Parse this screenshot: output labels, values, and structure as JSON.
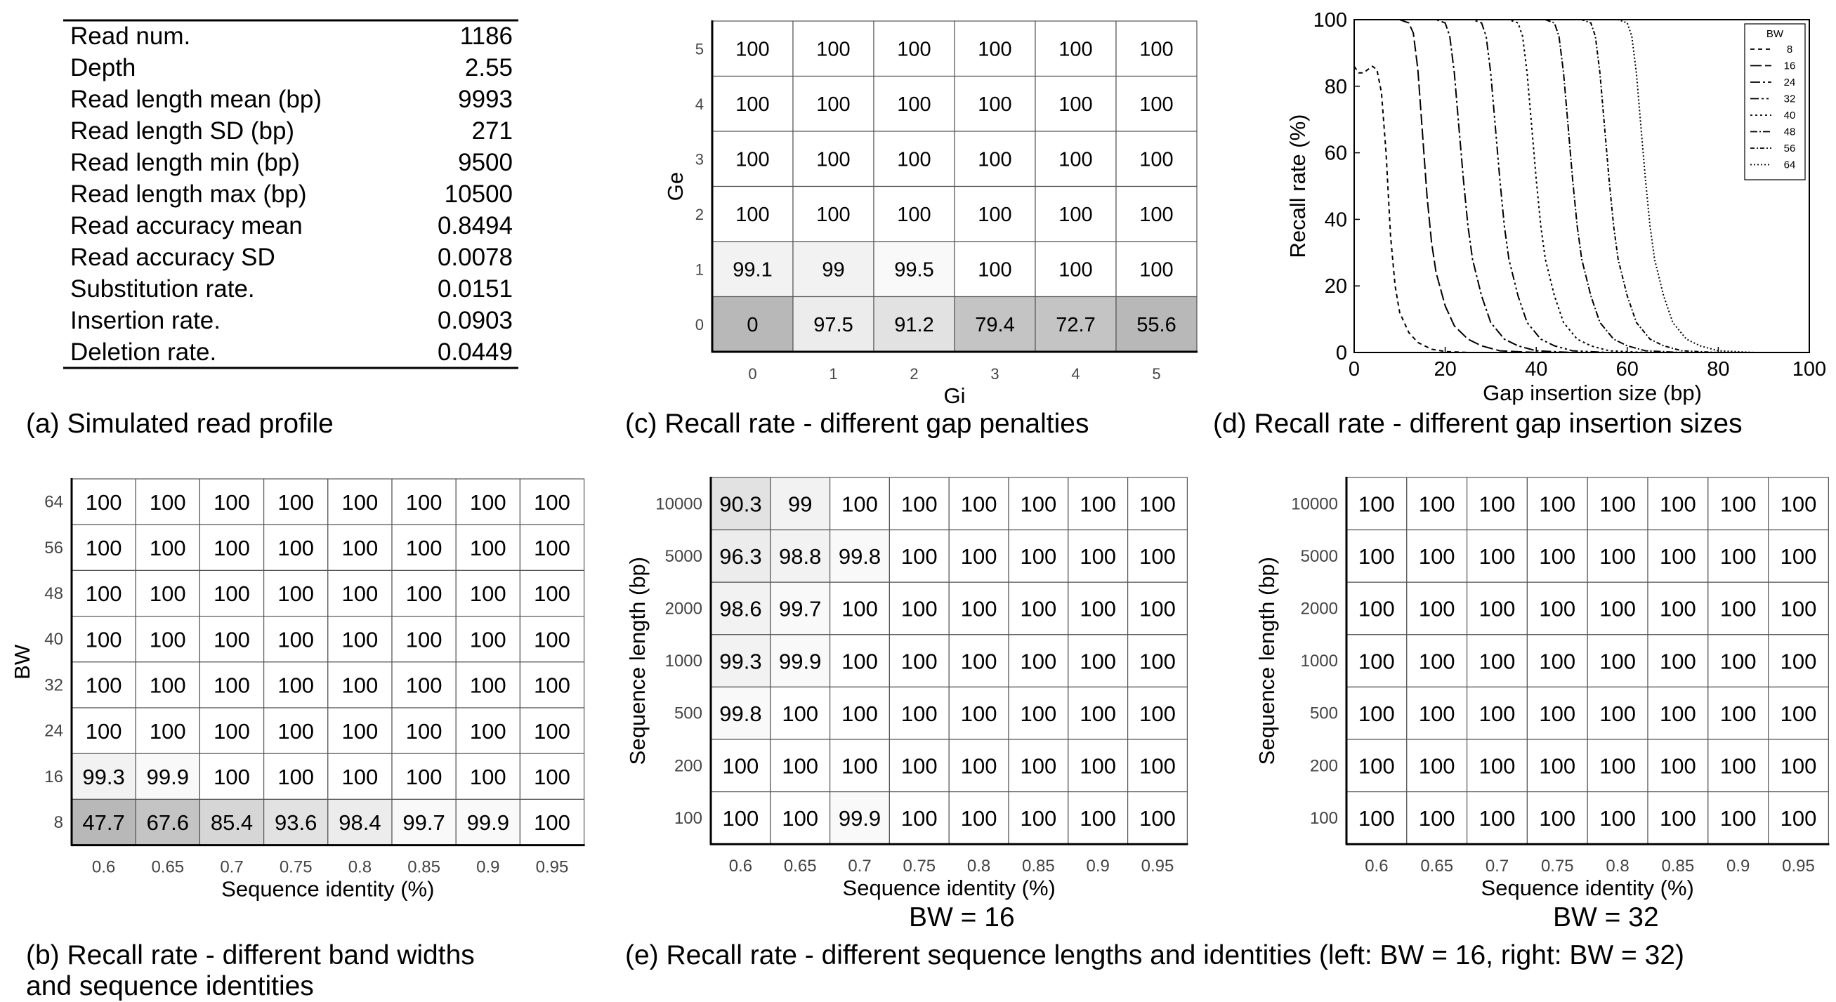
{
  "panel_a": {
    "caption": "(a) Simulated read profile",
    "rows": [
      [
        "Read num.",
        "1186"
      ],
      [
        "Depth",
        "2.55"
      ],
      [
        "Read length mean (bp)",
        "9993"
      ],
      [
        "Read length SD (bp)",
        "271"
      ],
      [
        "Read length min (bp)",
        "9500"
      ],
      [
        "Read length max (bp)",
        "10500"
      ],
      [
        "Read accuracy mean",
        "0.8494"
      ],
      [
        "Read accuracy SD",
        "0.0078"
      ],
      [
        "Substitution rate.",
        "0.0151"
      ],
      [
        "Insertion rate.",
        "0.0903"
      ],
      [
        "Deletion rate.",
        "0.0449"
      ]
    ]
  },
  "panel_b": {
    "caption_line1": "(b) Recall rate - different band widths",
    "caption_line2": "and sequence identities"
  },
  "panel_c": {
    "caption": "(c) Recall rate - different gap penalties"
  },
  "panel_d": {
    "caption": "(d) Recall rate - different gap insertion sizes"
  },
  "panel_e": {
    "caption": "(e) Recall rate - different sequence lengths and identities (left: BW = 16, right: BW = 32)",
    "left_label": "BW = 16",
    "right_label": "BW = 32"
  },
  "chart_data": [
    {
      "id": "b",
      "type": "heatmap",
      "xlabel": "Sequence identity (%)",
      "ylabel": "BW",
      "x": [
        "0.6",
        "0.65",
        "0.7",
        "0.75",
        "0.8",
        "0.85",
        "0.9",
        "0.95"
      ],
      "y": [
        "64",
        "56",
        "48",
        "40",
        "32",
        "24",
        "16",
        "8"
      ],
      "values": [
        [
          100,
          100,
          100,
          100,
          100,
          100,
          100,
          100
        ],
        [
          100,
          100,
          100,
          100,
          100,
          100,
          100,
          100
        ],
        [
          100,
          100,
          100,
          100,
          100,
          100,
          100,
          100
        ],
        [
          100,
          100,
          100,
          100,
          100,
          100,
          100,
          100
        ],
        [
          100,
          100,
          100,
          100,
          100,
          100,
          100,
          100
        ],
        [
          100,
          100,
          100,
          100,
          100,
          100,
          100,
          100
        ],
        [
          99.3,
          99.9,
          100,
          100,
          100,
          100,
          100,
          100
        ],
        [
          47.7,
          67.6,
          85.4,
          93.6,
          98.4,
          99.7,
          99.9,
          100
        ]
      ]
    },
    {
      "id": "c",
      "type": "heatmap",
      "xlabel": "Gi",
      "ylabel": "Ge",
      "x": [
        "0",
        "1",
        "2",
        "3",
        "4",
        "5"
      ],
      "y": [
        "5",
        "4",
        "3",
        "2",
        "1",
        "0"
      ],
      "values": [
        [
          100,
          100,
          100,
          100,
          100,
          100
        ],
        [
          100,
          100,
          100,
          100,
          100,
          100
        ],
        [
          100,
          100,
          100,
          100,
          100,
          100
        ],
        [
          100,
          100,
          100,
          100,
          100,
          100
        ],
        [
          99.1,
          99,
          99.5,
          100,
          100,
          100
        ],
        [
          0,
          97.5,
          91.2,
          79.4,
          72.7,
          55.6
        ]
      ]
    },
    {
      "id": "d",
      "type": "line",
      "xlabel": "Gap insertion size (bp)",
      "ylabel": "Recall rate (%)",
      "xlim": [
        0,
        100
      ],
      "ylim": [
        0,
        100
      ],
      "xticks": [
        "0",
        "20",
        "40",
        "60",
        "80",
        "100"
      ],
      "yticks": [
        "0",
        "20",
        "40",
        "60",
        "80",
        "100"
      ],
      "legend_title": "BW",
      "legend_position": "top-right",
      "series": [
        {
          "name": "8",
          "dash": "6,5",
          "points": [
            [
              0,
              86
            ],
            [
              1,
              84
            ],
            [
              2,
              84
            ],
            [
              3,
              85
            ],
            [
              4,
              86
            ],
            [
              5,
              85
            ],
            [
              6,
              78
            ],
            [
              7,
              60
            ],
            [
              8,
              35
            ],
            [
              9,
              20
            ],
            [
              10,
              12
            ],
            [
              12,
              6
            ],
            [
              14,
              3
            ],
            [
              17,
              1
            ],
            [
              20,
              0.3
            ],
            [
              25,
              0
            ],
            [
              100,
              0
            ]
          ]
        },
        {
          "name": "16",
          "dash": "16,5",
          "points": [
            [
              0,
              100
            ],
            [
              10,
              100
            ],
            [
              12,
              99
            ],
            [
              13,
              96
            ],
            [
              14,
              85
            ],
            [
              15,
              66
            ],
            [
              16,
              47
            ],
            [
              17,
              33
            ],
            [
              18,
              24
            ],
            [
              20,
              14
            ],
            [
              22,
              8
            ],
            [
              25,
              4
            ],
            [
              28,
              2
            ],
            [
              32,
              0.5
            ],
            [
              40,
              0
            ],
            [
              100,
              0
            ]
          ]
        },
        {
          "name": "24",
          "dash": "14,4,3,4",
          "points": [
            [
              0,
              100
            ],
            [
              18,
              100
            ],
            [
              20,
              99
            ],
            [
              21,
              95
            ],
            [
              22,
              84
            ],
            [
              23,
              68
            ],
            [
              24,
              52
            ],
            [
              25,
              38
            ],
            [
              26,
              28
            ],
            [
              28,
              17
            ],
            [
              30,
              9
            ],
            [
              33,
              4
            ],
            [
              36,
              2
            ],
            [
              40,
              0.5
            ],
            [
              48,
              0
            ],
            [
              100,
              0
            ]
          ]
        },
        {
          "name": "32",
          "dash": "12,4,3,4,3,4",
          "points": [
            [
              0,
              100
            ],
            [
              26,
              100
            ],
            [
              28,
              99
            ],
            [
              29,
              95
            ],
            [
              30,
              84
            ],
            [
              31,
              68
            ],
            [
              32,
              52
            ],
            [
              33,
              38
            ],
            [
              34,
              28
            ],
            [
              36,
              17
            ],
            [
              38,
              9
            ],
            [
              41,
              4
            ],
            [
              44,
              2
            ],
            [
              48,
              0.5
            ],
            [
              56,
              0
            ],
            [
              100,
              0
            ]
          ]
        },
        {
          "name": "40",
          "dash": "3,4",
          "points": [
            [
              0,
              100
            ],
            [
              34,
              100
            ],
            [
              36,
              99
            ],
            [
              37,
              95
            ],
            [
              38,
              84
            ],
            [
              39,
              68
            ],
            [
              40,
              52
            ],
            [
              41,
              38
            ],
            [
              42,
              28
            ],
            [
              44,
              17
            ],
            [
              46,
              9
            ],
            [
              49,
              4
            ],
            [
              52,
              2
            ],
            [
              56,
              0.5
            ],
            [
              64,
              0
            ],
            [
              100,
              0
            ]
          ]
        },
        {
          "name": "48",
          "dash": "10,3,2,3",
          "points": [
            [
              0,
              100
            ],
            [
              42,
              100
            ],
            [
              44,
              99
            ],
            [
              45,
              95
            ],
            [
              46,
              84
            ],
            [
              47,
              68
            ],
            [
              48,
              52
            ],
            [
              49,
              38
            ],
            [
              50,
              28
            ],
            [
              52,
              17
            ],
            [
              54,
              9
            ],
            [
              57,
              4
            ],
            [
              60,
              2
            ],
            [
              64,
              0.5
            ],
            [
              72,
              0
            ],
            [
              100,
              0
            ]
          ]
        },
        {
          "name": "56",
          "dash": "6,3,2,3",
          "points": [
            [
              0,
              100
            ],
            [
              50,
              100
            ],
            [
              52,
              99
            ],
            [
              53,
              95
            ],
            [
              54,
              84
            ],
            [
              55,
              68
            ],
            [
              56,
              52
            ],
            [
              57,
              38
            ],
            [
              58,
              28
            ],
            [
              60,
              17
            ],
            [
              62,
              9
            ],
            [
              65,
              4
            ],
            [
              68,
              2
            ],
            [
              72,
              0.5
            ],
            [
              80,
              0
            ],
            [
              100,
              0
            ]
          ]
        },
        {
          "name": "64",
          "dash": "2,3",
          "points": [
            [
              0,
              100
            ],
            [
              58,
              100
            ],
            [
              60,
              99
            ],
            [
              61,
              95
            ],
            [
              62,
              84
            ],
            [
              63,
              68
            ],
            [
              64,
              52
            ],
            [
              65,
              38
            ],
            [
              66,
              28
            ],
            [
              68,
              17
            ],
            [
              70,
              9
            ],
            [
              73,
              4
            ],
            [
              76,
              2
            ],
            [
              80,
              0.5
            ],
            [
              88,
              0
            ],
            [
              100,
              0
            ]
          ]
        }
      ]
    },
    {
      "id": "e_left",
      "type": "heatmap",
      "xlabel": "Sequence identity (%)",
      "ylabel": "Sequence length (bp)",
      "x": [
        "0.6",
        "0.65",
        "0.7",
        "0.75",
        "0.8",
        "0.85",
        "0.9",
        "0.95"
      ],
      "y": [
        "10000",
        "5000",
        "2000",
        "1000",
        "500",
        "200",
        "100"
      ],
      "values": [
        [
          90.3,
          99,
          100,
          100,
          100,
          100,
          100,
          100
        ],
        [
          96.3,
          98.8,
          99.8,
          100,
          100,
          100,
          100,
          100
        ],
        [
          98.6,
          99.7,
          100,
          100,
          100,
          100,
          100,
          100
        ],
        [
          99.3,
          99.9,
          100,
          100,
          100,
          100,
          100,
          100
        ],
        [
          99.8,
          100,
          100,
          100,
          100,
          100,
          100,
          100
        ],
        [
          100,
          100,
          100,
          100,
          100,
          100,
          100,
          100
        ],
        [
          100,
          100,
          99.9,
          100,
          100,
          100,
          100,
          100
        ]
      ]
    },
    {
      "id": "e_right",
      "type": "heatmap",
      "xlabel": "Sequence identity (%)",
      "ylabel": "Sequence length (bp)",
      "x": [
        "0.6",
        "0.65",
        "0.7",
        "0.75",
        "0.8",
        "0.85",
        "0.9",
        "0.95"
      ],
      "y": [
        "10000",
        "5000",
        "2000",
        "1000",
        "500",
        "200",
        "100"
      ],
      "values": [
        [
          100,
          100,
          100,
          100,
          100,
          100,
          100,
          100
        ],
        [
          100,
          100,
          100,
          100,
          100,
          100,
          100,
          100
        ],
        [
          100,
          100,
          100,
          100,
          100,
          100,
          100,
          100
        ],
        [
          100,
          100,
          100,
          100,
          100,
          100,
          100,
          100
        ],
        [
          100,
          100,
          100,
          100,
          100,
          100,
          100,
          100
        ],
        [
          100,
          100,
          100,
          100,
          100,
          100,
          100,
          100
        ],
        [
          100,
          100,
          100,
          100,
          100,
          100,
          100,
          100
        ]
      ]
    }
  ]
}
